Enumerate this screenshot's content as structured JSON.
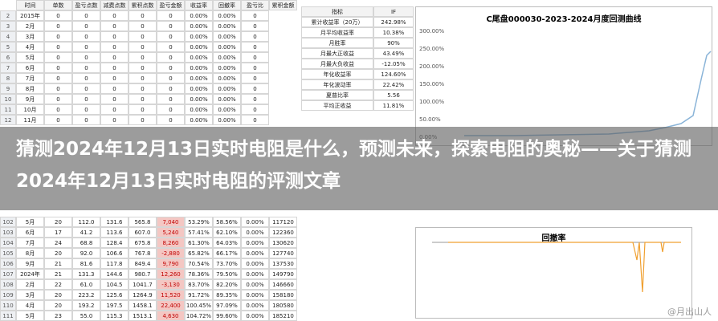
{
  "sheet": {
    "header": [
      "时间",
      "单数",
      "盈亏点数",
      "减费点数",
      "累积点数",
      "盈亏金额",
      "收益率",
      "回撤率",
      "盈亏比",
      "累积金额"
    ],
    "rows_top": [
      [
        "2",
        "2015年",
        "0",
        "0",
        "0",
        "0",
        "0",
        "0.00%",
        "0.00%",
        "0"
      ],
      [
        "3",
        "2月",
        "0",
        "0",
        "0",
        "0",
        "0",
        "0.00%",
        "0.00%",
        "0"
      ],
      [
        "4",
        "3月",
        "0",
        "0",
        "0",
        "0",
        "0",
        "0.00%",
        "0.00%",
        "0"
      ],
      [
        "5",
        "4月",
        "0",
        "0",
        "0",
        "0",
        "0",
        "0.00%",
        "0.00%",
        "0"
      ],
      [
        "6",
        "5月",
        "0",
        "0",
        "0",
        "0",
        "0",
        "0.00%",
        "0.00%",
        "0"
      ],
      [
        "7",
        "6月",
        "0",
        "0",
        "0",
        "0",
        "0",
        "0.00%",
        "0.00%",
        "0"
      ],
      [
        "8",
        "7月",
        "0",
        "0",
        "0",
        "0",
        "0",
        "0.00%",
        "0.00%",
        "0"
      ],
      [
        "9",
        "8月",
        "0",
        "0",
        "0",
        "0",
        "0",
        "0.00%",
        "0.00%",
        "0"
      ],
      [
        "10",
        "9月",
        "0",
        "0",
        "0",
        "0",
        "0",
        "0.00%",
        "0.00%",
        "0"
      ],
      [
        "11",
        "10月",
        "0",
        "0",
        "0",
        "0",
        "0",
        "0.00%",
        "0.00%",
        "0"
      ],
      [
        "12",
        "11月",
        "0",
        "0",
        "0",
        "0",
        "0",
        "0.00%",
        "0.00%",
        "0"
      ]
    ],
    "rows_bottom": [
      [
        "102",
        "5月",
        "20",
        "112.0",
        "131.6",
        "565.8",
        "7,040",
        "53.29%",
        "58.56%",
        "0.00%",
        "117120"
      ],
      [
        "103",
        "6月",
        "17",
        "41.2",
        "113.6",
        "607.0",
        "5,240",
        "57.41%",
        "62.10%",
        "0.00%",
        "122360"
      ],
      [
        "104",
        "7月",
        "24",
        "68.8",
        "128.4",
        "675.8",
        "8,260",
        "61.30%",
        "64.03%",
        "0.00%",
        "130620"
      ],
      [
        "105",
        "8月",
        "20",
        "92.0",
        "106.6",
        "767.8",
        "-2,880",
        "65.82%",
        "66.17%",
        "0.00%",
        "127740"
      ],
      [
        "106",
        "9月",
        "21",
        "81.6",
        "117.8",
        "849.4",
        "9,790",
        "70.54%",
        "73.70%",
        "0.00%",
        "137530"
      ],
      [
        "107",
        "2024年",
        "21",
        "131.3",
        "144.6",
        "980.7",
        "12,260",
        "78.36%",
        "79.50%",
        "0.00%",
        "149790"
      ],
      [
        "108",
        "2月",
        "22",
        "61.0",
        "104.5",
        "1041.7",
        "-3,130",
        "83.70%",
        "82.20%",
        "0.00%",
        "146660"
      ],
      [
        "109",
        "3月",
        "20",
        "223.2",
        "125.6",
        "1264.9",
        "11,520",
        "91.72%",
        "89.35%",
        "0.00%",
        "158180"
      ],
      [
        "110",
        "4月",
        "20",
        "193.2",
        "197.5",
        "1458.1",
        "22,400",
        "100.45%",
        "97.09%",
        "0.00%",
        "180580"
      ],
      [
        "111",
        "5月",
        "23",
        "55.0",
        "115.3",
        "1513.1",
        "4,630",
        "104.72%",
        "99.60%",
        "0.00%",
        "185210"
      ]
    ]
  },
  "stats": {
    "header": [
      "指标",
      "IF"
    ],
    "rows": [
      [
        "累计收益率（20万）",
        "242.98%"
      ],
      [
        "月平均收益率",
        "10.38%"
      ],
      [
        "月胜率",
        "90%"
      ],
      [
        "月最大正收益",
        "43.49%"
      ],
      [
        "月最大负收益",
        "-12.05%"
      ],
      [
        "年化收益率",
        "124.60%"
      ],
      [
        "年化波动率",
        "22.42%"
      ],
      [
        "夏普比率",
        "5.56"
      ],
      [
        "平均正收益",
        "11.81%"
      ]
    ]
  },
  "chart1": {
    "title": "C尾盘000030-2023-2024月度回测曲线",
    "ticks": [
      "300.00%",
      "250.00%",
      "200.00%",
      "150.00%",
      "100.00%",
      "50.00%",
      "0.00%"
    ]
  },
  "chart2": {
    "title": "回撤率"
  },
  "headline": "猜测2024年12月13日实时电阻是什么，预测未来，探索电阻的奥秘——关于猜测2024年12月13日实时电阻的评测文章",
  "watermark": "@月出山人"
}
